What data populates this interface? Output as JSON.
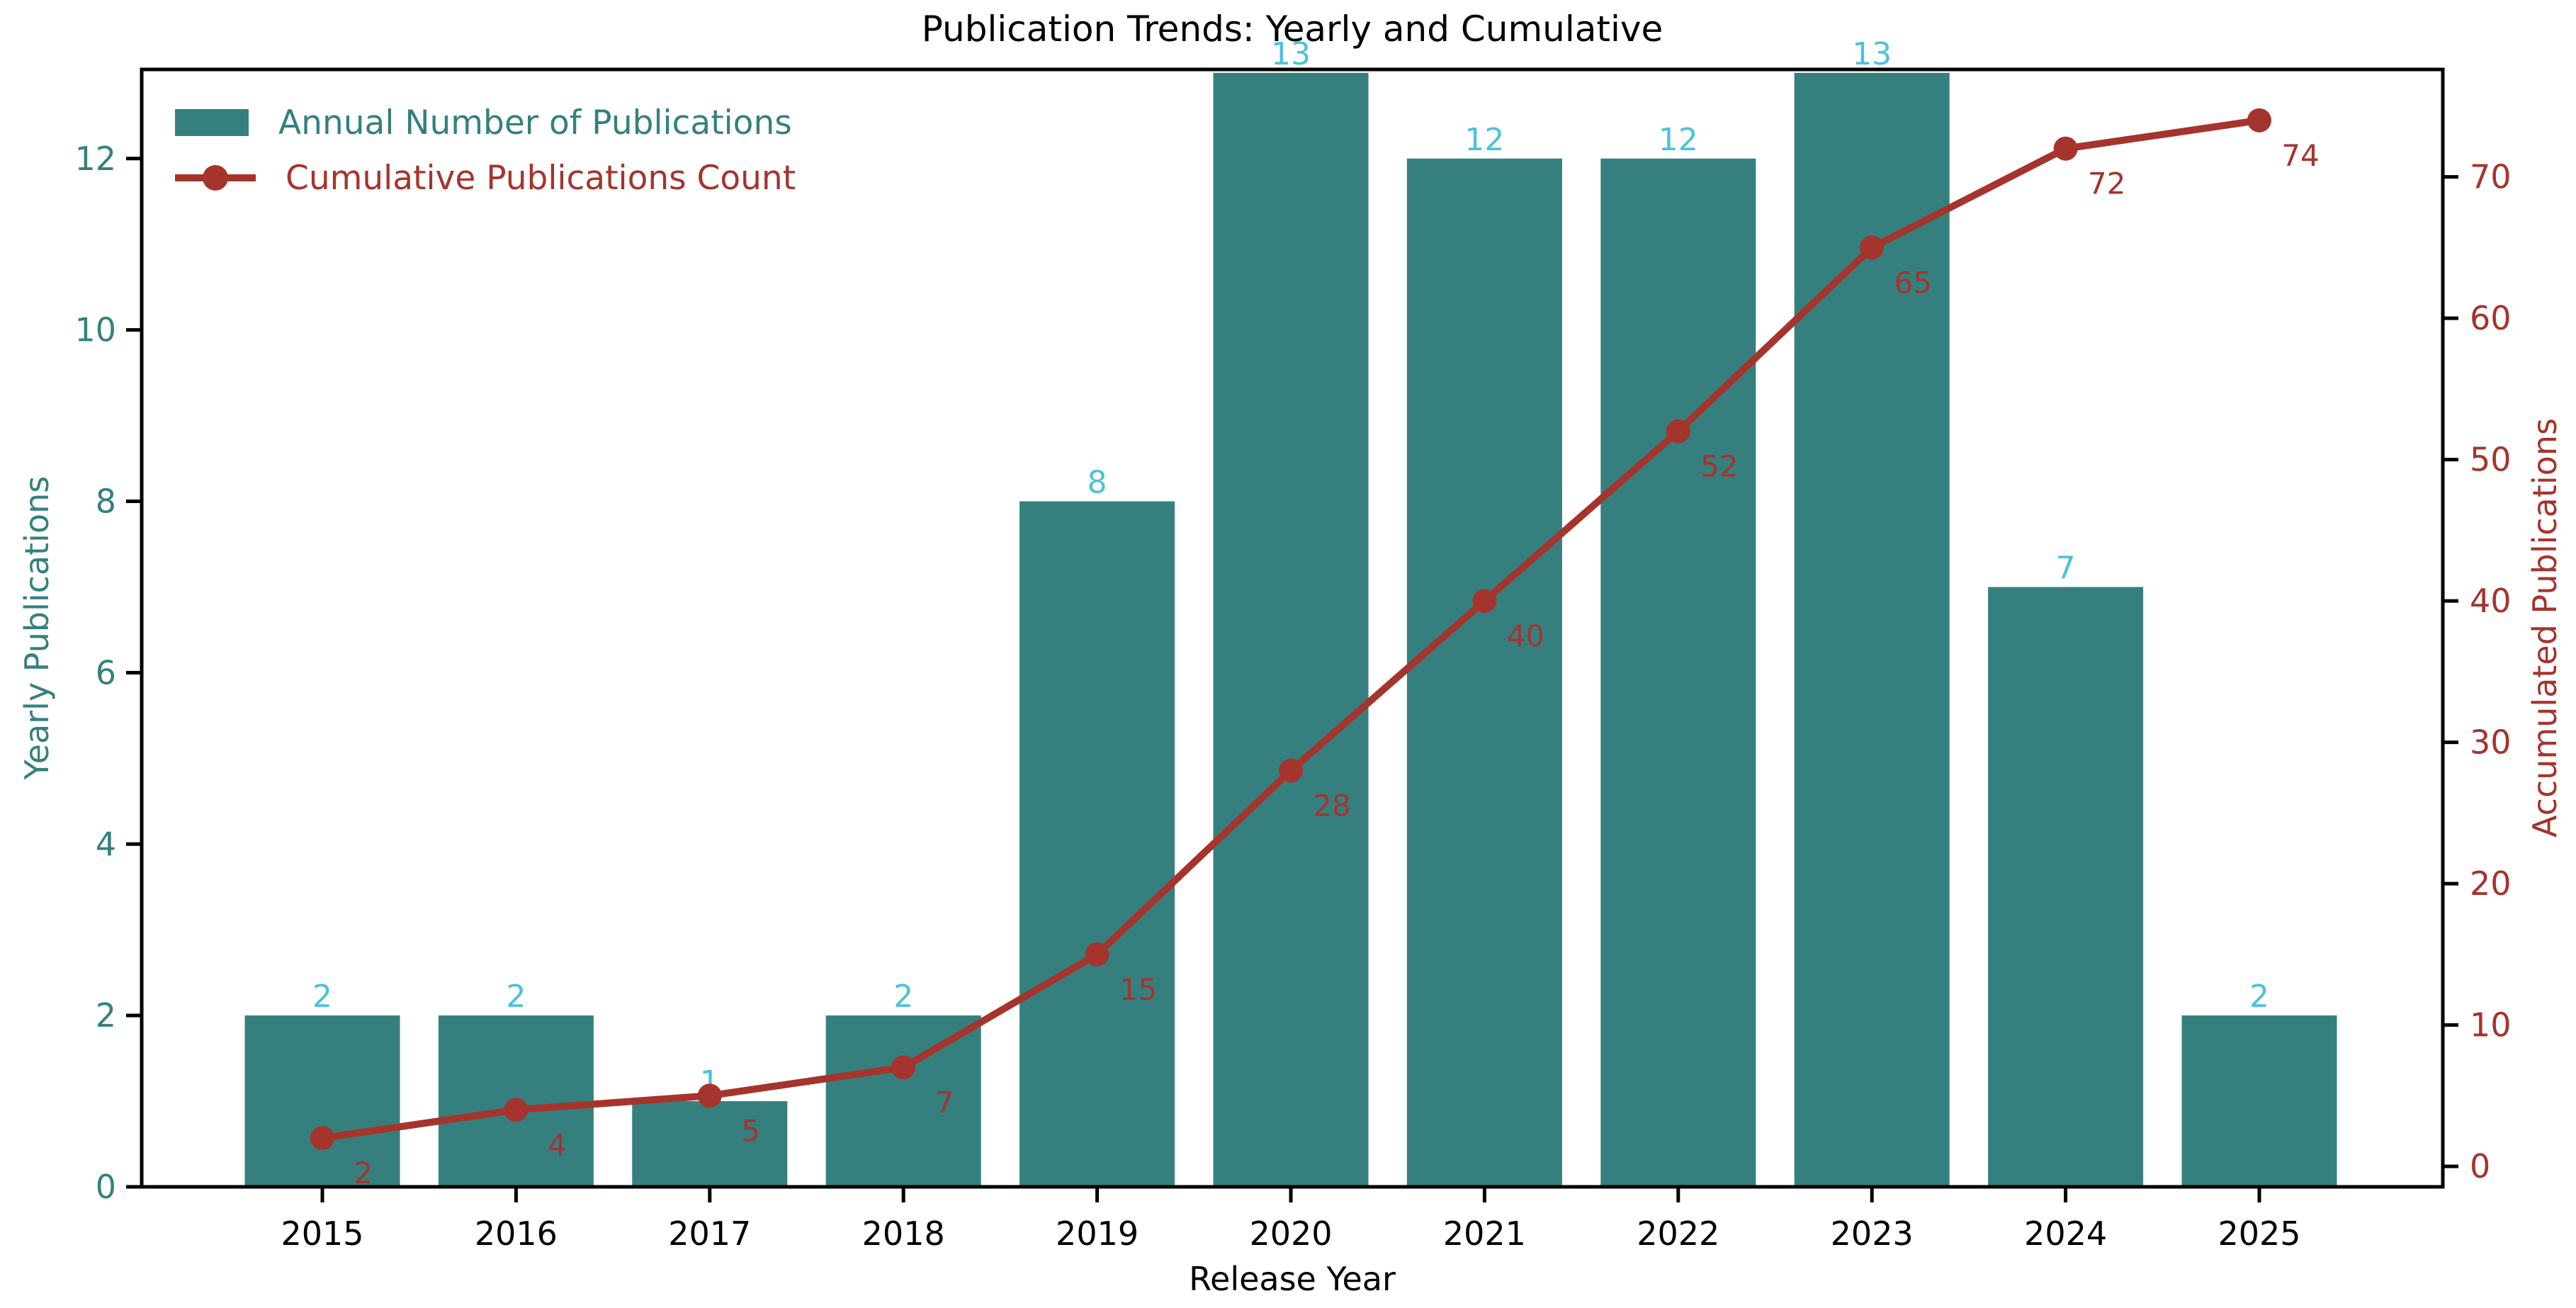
{
  "title": "Publication Trends: Yearly and Cumulative",
  "colors": {
    "bar_teal": "#35807F",
    "line_dark_red": "#A5342D",
    "bar_label_cyan": "#4DC1DB",
    "axis_black": "#000000",
    "background": "#ffffff"
  },
  "legend": {
    "items": [
      {
        "label": "Annual Number of Publications",
        "marker": "square-swatch",
        "color": "#35807F"
      },
      {
        "label": "Cumulative Publications Count",
        "marker": "line-with-dot",
        "color": "#A5342D"
      }
    ],
    "position": "upper left"
  },
  "axes": {
    "x_label": "Release Year",
    "y_left_label": "Yearly Publications",
    "y_right_label": "Accumulated Publications"
  },
  "chart_data": {
    "type": "bar",
    "title": "Publication Trends: Yearly and Cumulative",
    "categories": [
      "2015",
      "2016",
      "2017",
      "2018",
      "2019",
      "2020",
      "2021",
      "2022",
      "2023",
      "2024",
      "2025"
    ],
    "series": [
      {
        "name": "Annual Number of Publications",
        "type": "bar",
        "axis": "left",
        "color": "#35807F",
        "label_color": "#4DC1DB",
        "values": [
          2,
          2,
          1,
          2,
          8,
          13,
          12,
          12,
          13,
          7,
          2
        ]
      },
      {
        "name": "Cumulative Publications Count",
        "type": "line",
        "axis": "right",
        "color": "#A5342D",
        "label_color": "#A5342D",
        "values": [
          2,
          4,
          5,
          7,
          15,
          28,
          40,
          52,
          65,
          72,
          74
        ]
      }
    ],
    "xlabel": "Release Year",
    "ylabel_left": "Yearly Publications",
    "ylabel_right": "Accumulated Publications",
    "yticks_left": [
      0,
      2,
      4,
      6,
      8,
      10,
      12
    ],
    "yticks_right": [
      0,
      10,
      20,
      30,
      40,
      50,
      60,
      70
    ],
    "ylim_left": [
      0,
      13.04
    ],
    "ylim_right": [
      -1.45,
      77.6
    ],
    "grid": false,
    "legend_position": "upper left"
  }
}
